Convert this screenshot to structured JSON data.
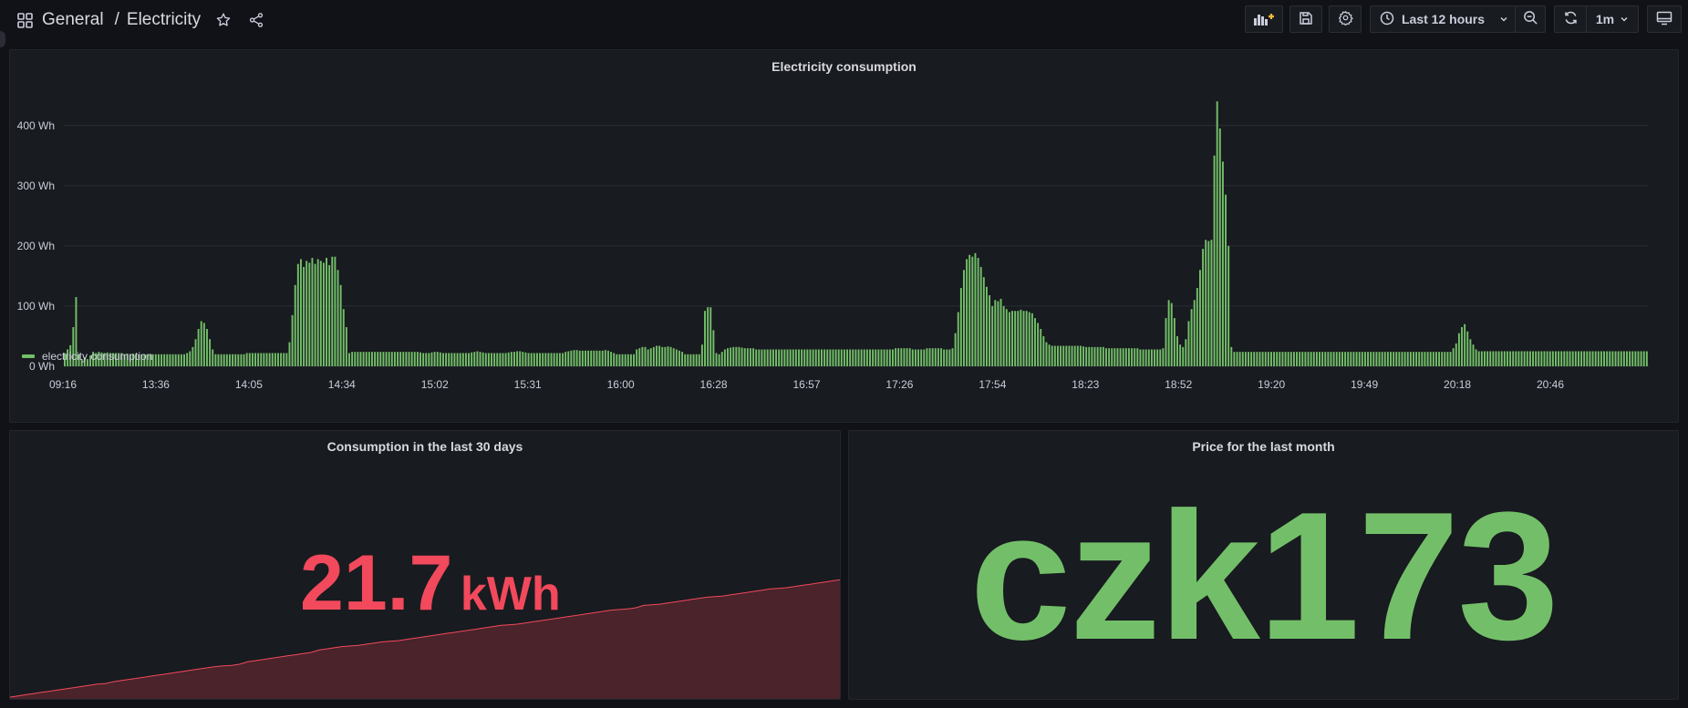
{
  "breadcrumb": {
    "folder": "General",
    "separator": "/",
    "dashboard": "Electricity"
  },
  "toolbar": {
    "time_range_label": "Last 12 hours",
    "refresh_interval_label": "1m",
    "icons": [
      "add-panel-icon",
      "save-icon",
      "settings-icon",
      "clock-icon",
      "chevron-down-icon",
      "zoom-out-icon",
      "refresh-icon",
      "chevron-down-icon",
      "tv-mode-icon"
    ]
  },
  "colors": {
    "green": "#73bf69",
    "red": "#f2495c",
    "red_fill": "#4a232b",
    "bg": "#111217",
    "panel": "#181b1f"
  },
  "panels": {
    "consumption": {
      "title": "Electricity consumption",
      "legend_label": "electricity consumption"
    },
    "last30": {
      "title": "Consumption in the last 30 days",
      "value": "21.7",
      "unit": "kWh",
      "sparkline": [
        0,
        1,
        2,
        3,
        4,
        5,
        6,
        7,
        8,
        9,
        10,
        11,
        11.5,
        13,
        14,
        15,
        16,
        17,
        18,
        19,
        20,
        21,
        22,
        23,
        24,
        25,
        26,
        26.5,
        27,
        28,
        30,
        31,
        32,
        33,
        34,
        35,
        36,
        37,
        38,
        40,
        41,
        42,
        43,
        43.5,
        44,
        45,
        46,
        47,
        47.5,
        48,
        49,
        50,
        51,
        52,
        53,
        54,
        55,
        56,
        57,
        58,
        59,
        60,
        61,
        61.5,
        62,
        63,
        64,
        65,
        66,
        67,
        68,
        69,
        70,
        71,
        72,
        73,
        74,
        74.5,
        75,
        76,
        78,
        78.5,
        79,
        80,
        81,
        82,
        83,
        84,
        85,
        85.5,
        86,
        87,
        88,
        89,
        90,
        91,
        92,
        92.5,
        93,
        94,
        95,
        96,
        97,
        98,
        99,
        100
      ]
    },
    "price": {
      "title": "Price for the last month",
      "value": "czk173"
    }
  },
  "chart_data": {
    "type": "bar",
    "series": [
      {
        "name": "electricity consumption"
      }
    ],
    "y_unit": "Wh",
    "y_ticks": [
      "0 Wh",
      "100 Wh",
      "200 Wh",
      "300 Wh",
      "400 Wh"
    ],
    "ylim": [
      0,
      460
    ],
    "x_ticks": [
      "09:16",
      "13:36",
      "14:05",
      "14:34",
      "15:02",
      "15:31",
      "16:00",
      "16:28",
      "16:57",
      "17:26",
      "17:54",
      "18:23",
      "18:52",
      "19:20",
      "19:49",
      "20:18",
      "20:46"
    ],
    "grid": true,
    "legend": "bottom-left",
    "values": [
      22,
      28,
      35,
      65,
      115,
      20,
      12,
      15,
      12,
      18,
      24,
      22,
      24,
      23,
      22,
      23,
      22,
      22,
      22,
      22,
      22,
      20,
      21,
      20,
      21,
      20,
      20,
      20,
      20,
      20,
      20,
      20,
      20,
      20,
      20,
      20,
      20,
      20,
      20,
      20,
      20,
      20,
      20,
      22,
      25,
      32,
      45,
      62,
      75,
      72,
      62,
      45,
      28,
      20,
      20,
      20,
      20,
      20,
      20,
      20,
      20,
      20,
      20,
      20,
      22,
      22,
      22,
      22,
      22,
      22,
      22,
      22,
      22,
      22,
      22,
      22,
      22,
      22,
      22,
      40,
      85,
      135,
      170,
      178,
      165,
      175,
      172,
      180,
      170,
      178,
      175,
      172,
      180,
      168,
      182,
      182,
      160,
      135,
      95,
      65,
      22,
      24,
      24,
      24,
      24,
      24,
      24,
      24,
      24,
      24,
      24,
      24,
      24,
      24,
      24,
      24,
      24,
      24,
      24,
      24,
      24,
      24,
      24,
      24,
      24,
      23,
      22,
      22,
      22,
      23,
      24,
      24,
      23,
      22,
      22,
      22,
      22,
      22,
      22,
      22,
      22,
      22,
      22,
      23,
      24,
      25,
      24,
      23,
      22,
      22,
      22,
      22,
      22,
      22,
      22,
      22,
      23,
      24,
      24,
      25,
      25,
      24,
      23,
      22,
      22,
      22,
      22,
      22,
      22,
      22,
      22,
      22,
      22,
      22,
      22,
      22,
      24,
      25,
      26,
      27,
      27,
      26,
      26,
      26,
      26,
      26,
      26,
      26,
      26,
      26,
      27,
      26,
      24,
      22,
      20,
      20,
      20,
      20,
      20,
      20,
      20,
      28,
      30,
      32,
      32,
      28,
      30,
      32,
      34,
      34,
      32,
      32,
      33,
      32,
      30,
      28,
      26,
      24,
      20,
      20,
      20,
      20,
      20,
      20,
      36,
      92,
      98,
      98,
      60,
      22,
      20,
      24,
      28,
      30,
      31,
      32,
      32,
      32,
      31,
      30,
      30,
      30,
      30,
      28,
      28,
      28,
      28,
      28,
      28,
      28,
      28,
      28,
      28,
      28,
      28,
      28,
      28,
      28,
      28,
      28,
      28,
      28,
      28,
      28,
      28,
      28,
      28,
      28,
      28,
      28,
      28,
      28,
      28,
      28,
      28,
      28,
      28,
      28,
      28,
      28,
      28,
      28,
      28,
      28,
      28,
      28,
      28,
      28,
      28,
      28,
      28,
      28,
      30,
      30,
      30,
      30,
      30,
      30,
      28,
      28,
      28,
      28,
      28,
      30,
      30,
      30,
      30,
      30,
      30,
      28,
      28,
      28,
      30,
      55,
      90,
      130,
      160,
      178,
      185,
      182,
      188,
      180,
      165,
      148,
      132,
      118,
      100,
      110,
      108,
      112,
      100,
      95,
      90,
      92,
      92,
      92,
      94,
      92,
      92,
      90,
      88,
      80,
      72,
      62,
      50,
      40,
      36,
      34,
      34,
      34,
      34,
      34,
      34,
      34,
      34,
      34,
      34,
      34,
      33,
      32,
      32,
      32,
      32,
      32,
      32,
      32,
      30,
      30,
      30,
      30,
      30,
      30,
      30,
      30,
      30,
      30,
      30,
      30,
      28,
      28,
      28,
      28,
      28,
      28,
      28,
      28,
      30,
      80,
      110,
      105,
      80,
      50,
      36,
      32,
      45,
      75,
      95,
      110,
      130,
      160,
      195,
      210,
      208,
      210,
      350,
      440,
      395,
      340,
      285,
      200,
      32,
      24,
      24,
      24,
      24,
      24,
      24,
      24,
      24,
      24,
      24,
      24,
      24,
      24,
      24,
      24,
      24,
      24,
      24,
      24,
      24,
      24,
      24,
      24,
      24,
      24,
      24,
      24,
      24,
      24,
      24,
      24,
      24,
      24,
      24,
      24,
      24,
      24,
      24,
      24,
      24,
      24,
      24,
      24,
      24,
      24,
      24,
      24,
      24,
      24,
      24,
      24,
      24,
      24,
      24,
      24,
      24,
      24,
      24,
      24,
      24,
      24,
      24,
      24,
      24,
      24,
      24,
      24,
      24,
      24,
      24,
      24,
      24,
      24,
      24,
      24,
      24,
      24,
      30,
      38,
      55,
      65,
      70,
      58,
      45,
      36,
      28,
      25,
      25,
      25,
      25,
      25,
      25,
      25,
      25,
      25,
      25,
      25,
      25,
      25,
      25,
      25,
      25,
      25,
      25,
      25,
      25,
      25,
      25,
      25,
      25,
      25,
      25,
      25,
      25,
      25,
      25,
      25,
      25,
      25,
      25,
      25,
      25,
      25,
      25,
      25,
      25,
      25,
      25,
      25,
      25,
      25,
      25,
      25,
      25,
      25,
      25,
      25,
      25,
      25,
      25,
      25,
      25,
      25,
      25,
      25,
      25
    ]
  }
}
